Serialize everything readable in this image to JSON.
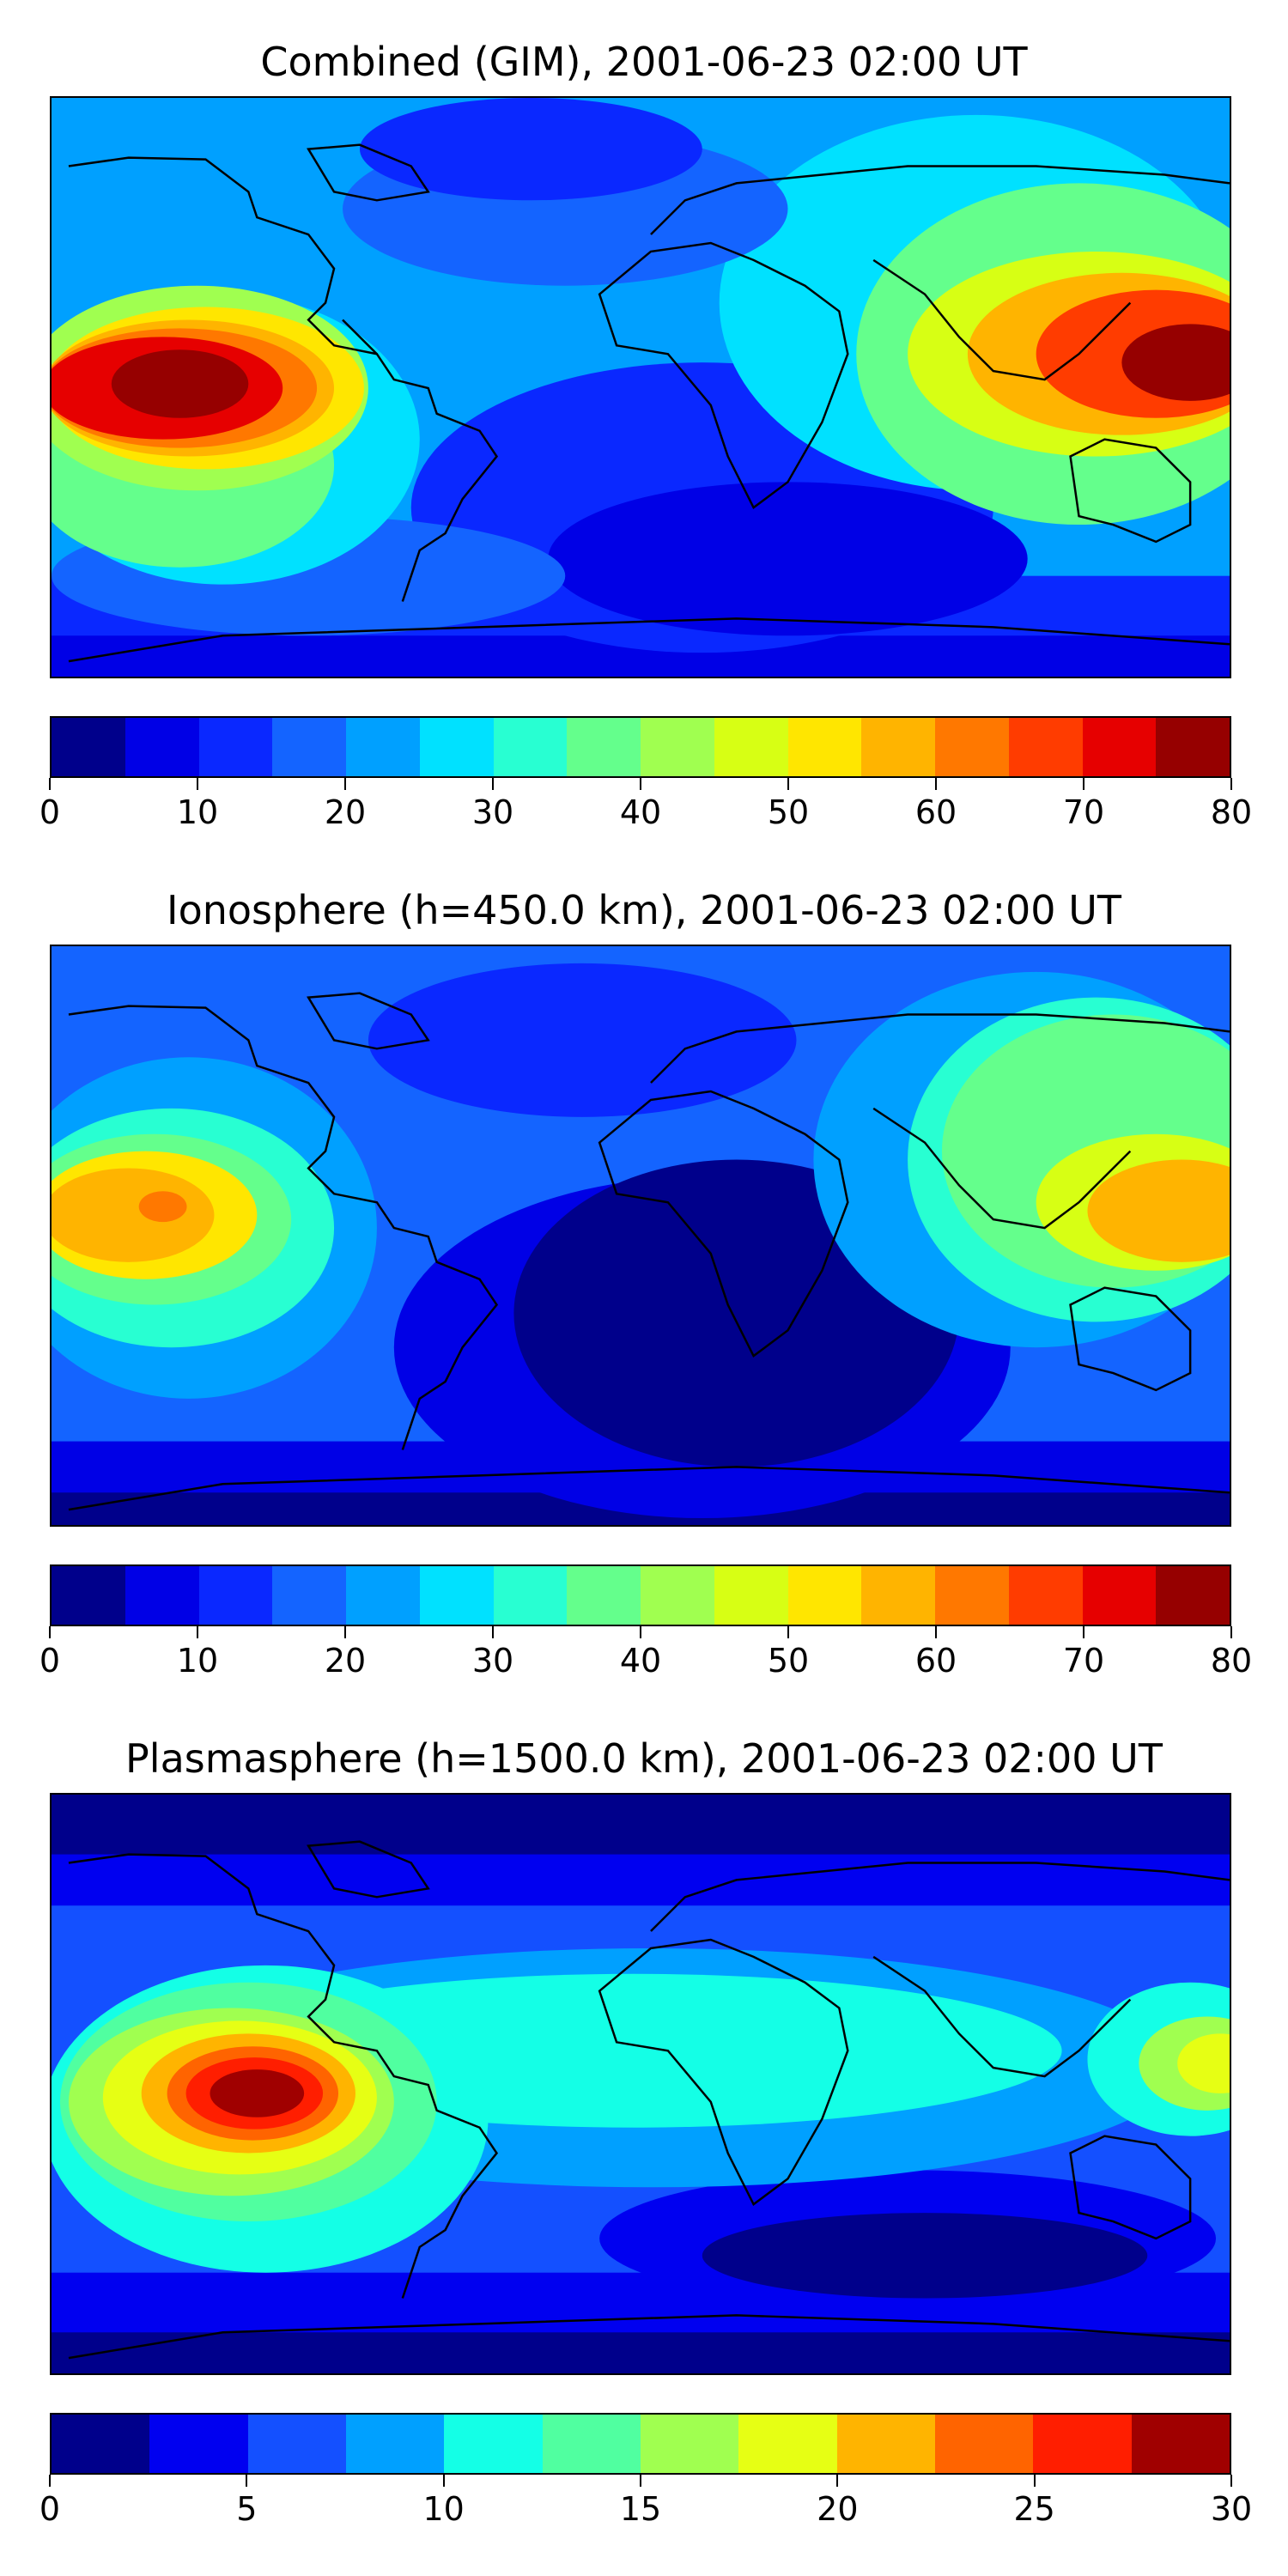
{
  "panels": [
    {
      "title": "Combined (GIM), 2001-06-23 02:00 UT",
      "colorbar": {
        "colors": [
          "#00008b",
          "#0000e6",
          "#0a28ff",
          "#1464ff",
          "#00a0ff",
          "#00e1ff",
          "#28ffd2",
          "#64ff8c",
          "#a0ff50",
          "#d7ff14",
          "#ffe600",
          "#ffb400",
          "#ff7800",
          "#ff3c00",
          "#e60000",
          "#960000"
        ],
        "ticks": [
          "0",
          "10",
          "20",
          "30",
          "40",
          "50",
          "60",
          "70",
          "80"
        ]
      }
    },
    {
      "title": "Ionosphere  (h=450.0 km), 2001-06-23 02:00 UT",
      "colorbar": {
        "colors": [
          "#00008b",
          "#0000e6",
          "#0a28ff",
          "#1464ff",
          "#00a0ff",
          "#00e1ff",
          "#28ffd2",
          "#64ff8c",
          "#a0ff50",
          "#d7ff14",
          "#ffe600",
          "#ffb400",
          "#ff7800",
          "#ff3c00",
          "#e60000",
          "#960000"
        ],
        "ticks": [
          "0",
          "10",
          "20",
          "30",
          "40",
          "50",
          "60",
          "70",
          "80"
        ]
      }
    },
    {
      "title": "Plasmasphere (h=1500.0 km), 2001-06-23 02:00 UT",
      "colorbar": {
        "colors": [
          "#00008b",
          "#0000f0",
          "#1450ff",
          "#00a0ff",
          "#14ffe6",
          "#50ffa0",
          "#a0ff50",
          "#e6ff14",
          "#ffb400",
          "#ff6400",
          "#ff1e00",
          "#a00000"
        ],
        "ticks": [
          "0",
          "5",
          "10",
          "15",
          "20",
          "25",
          "30"
        ]
      }
    }
  ]
}
